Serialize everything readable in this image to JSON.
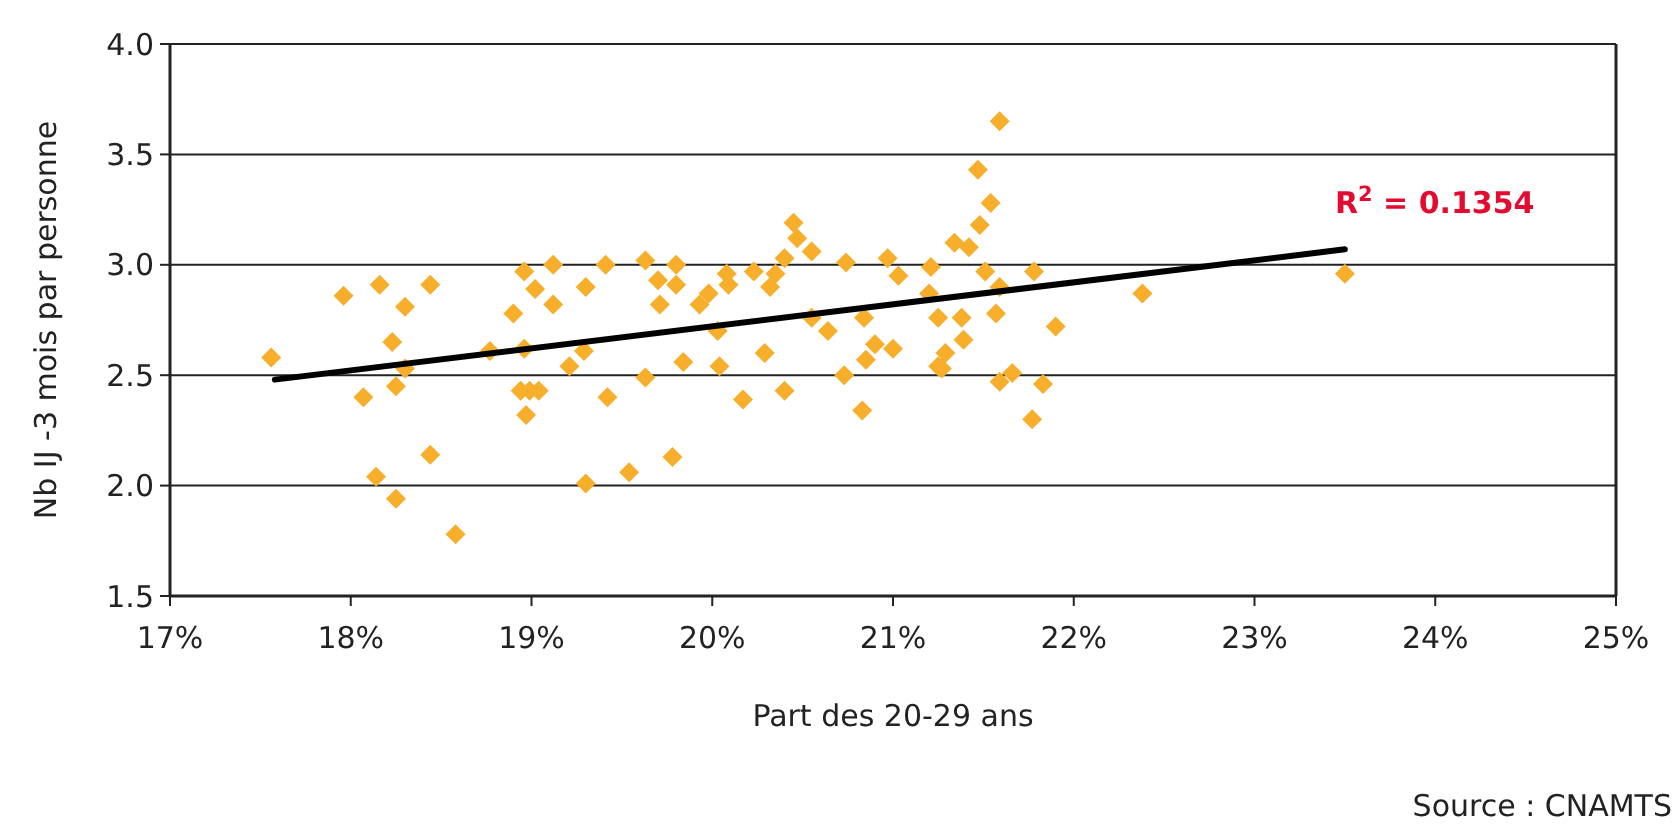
{
  "chart_data": {
    "type": "scatter",
    "xlabel": "Part des 20-29 ans",
    "ylabel": "Nb IJ -3 mois par personne",
    "xlim": [
      17,
      25
    ],
    "xticks": [
      {
        "value": 17,
        "label": "17%"
      },
      {
        "value": 18,
        "label": "18%"
      },
      {
        "value": 19,
        "label": "19%"
      },
      {
        "value": 20,
        "label": "20%"
      },
      {
        "value": 21,
        "label": "21%"
      },
      {
        "value": 22,
        "label": "22%"
      },
      {
        "value": 23,
        "label": "23%"
      },
      {
        "value": 24,
        "label": "24%"
      },
      {
        "value": 25,
        "label": "25%"
      }
    ],
    "ylim": [
      1.5,
      4.0
    ],
    "yticks": [
      {
        "value": 1.5,
        "label": "1.5"
      },
      {
        "value": 2,
        "label": "2.0"
      },
      {
        "value": 2.5,
        "label": "2.5"
      },
      {
        "value": 3,
        "label": "3.0"
      },
      {
        "value": 3.5,
        "label": "3.5"
      },
      {
        "value": 4,
        "label": "4.0"
      }
    ],
    "grid": "y",
    "series": [
      {
        "marker": "diamond",
        "color": "#f7ae2b",
        "x": [
          17.56,
          17.96,
          18.16,
          18.44,
          18.3,
          18.23,
          18.3,
          18.07,
          18.25,
          18.14,
          18.25,
          18.44,
          18.58,
          18.77,
          18.9,
          18.96,
          19.02,
          18.96,
          18.94,
          18.99,
          19.04,
          18.97,
          19.12,
          19.12,
          19.21,
          19.29,
          19.3,
          19.3,
          19.41,
          19.42,
          19.54,
          19.63,
          19.63,
          19.7,
          19.71,
          19.78,
          19.8,
          19.8,
          19.84,
          19.93,
          19.98,
          20.03,
          20.04,
          20.08,
          20.09,
          20.17,
          20.23,
          20.29,
          20.32,
          20.35,
          20.4,
          20.4,
          20.45,
          20.47,
          20.55,
          20.55,
          20.64,
          20.73,
          20.74,
          20.84,
          20.83,
          20.85,
          20.9,
          20.97,
          21.03,
          21.0,
          21.21,
          21.2,
          21.25,
          21.59,
          21.47,
          21.54,
          21.48,
          21.34,
          21.42,
          21.51,
          21.78,
          21.59,
          22.38,
          21.25,
          21.38,
          21.57,
          21.39,
          21.9,
          21.29,
          21.27,
          21.59,
          21.66,
          21.83,
          21.77,
          23.5
        ],
        "values": [
          2.58,
          2.86,
          2.91,
          2.91,
          2.81,
          2.65,
          2.53,
          2.4,
          2.45,
          2.04,
          1.94,
          2.14,
          1.78,
          2.61,
          2.78,
          2.97,
          2.89,
          2.62,
          2.43,
          2.43,
          2.43,
          2.32,
          3.0,
          2.82,
          2.54,
          2.61,
          2.9,
          2.01,
          3.0,
          2.4,
          2.06,
          3.02,
          2.49,
          2.93,
          2.82,
          2.13,
          3.0,
          2.91,
          2.56,
          2.82,
          2.87,
          2.7,
          2.54,
          2.96,
          2.91,
          2.39,
          2.97,
          2.6,
          2.9,
          2.96,
          3.03,
          2.43,
          3.19,
          3.12,
          3.06,
          2.76,
          2.7,
          2.5,
          3.01,
          2.76,
          2.34,
          2.57,
          2.64,
          3.03,
          2.95,
          2.62,
          2.99,
          2.87,
          2.54,
          3.65,
          3.43,
          3.28,
          3.18,
          3.1,
          3.08,
          2.97,
          2.97,
          2.9,
          2.87,
          2.76,
          2.76,
          2.78,
          2.66,
          2.72,
          2.6,
          2.53,
          2.47,
          2.51,
          2.46,
          2.3,
          2.96
        ]
      },
      {
        "type": "line",
        "color": "#000000",
        "x": [
          17.58,
          23.5
        ],
        "values": [
          2.48,
          3.07
        ]
      }
    ],
    "annotations": [
      "R$^{2}$ = 0.1354",
      "Source : CNAMTS"
    ]
  }
}
